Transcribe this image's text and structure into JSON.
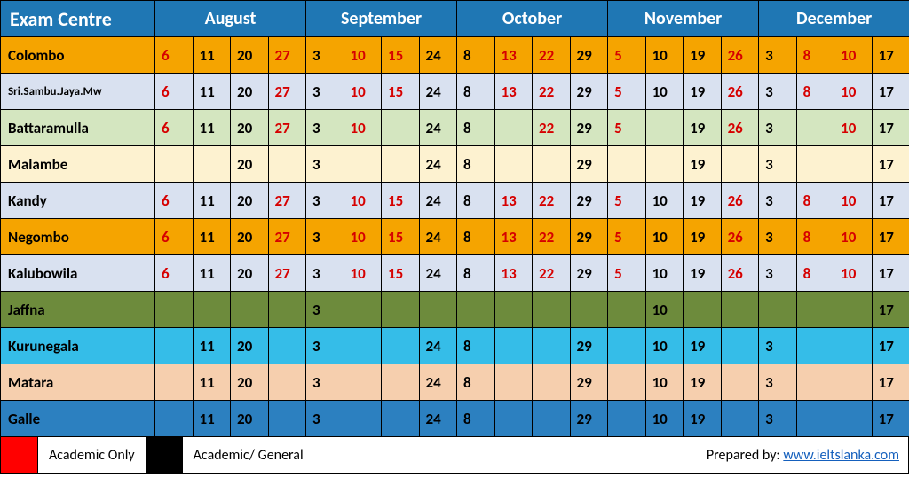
{
  "header": {
    "examCentreLabel": "Exam Centre",
    "months": [
      "August",
      "September",
      "October",
      "November",
      "December"
    ]
  },
  "colors": {
    "headerBg": "#1f77b4",
    "headerFg": "#ffffff",
    "academicOnly": "#d60000",
    "academicGeneral": "#000000",
    "legendRedBox": "#ff0000",
    "legendBlackBox": "#000000",
    "link": "#1560bd"
  },
  "rowColors": {
    "orange": "#f5a400",
    "paleblue": "#d9e1f0",
    "palegreen": "#d4e6c0",
    "cream": "#fdf2d0",
    "olive": "#6d8b3c",
    "skyblue": "#35bde8",
    "peach": "#f6cfae",
    "midblue": "#2c80c0"
  },
  "centres": [
    {
      "name": "Colombo",
      "bg": "orange",
      "dates": [
        [
          "6",
          "r"
        ],
        [
          "11",
          "b"
        ],
        [
          "20",
          "b"
        ],
        [
          "27",
          "r"
        ],
        [
          "3",
          "b"
        ],
        [
          "10",
          "r"
        ],
        [
          "15",
          "r"
        ],
        [
          "24",
          "b"
        ],
        [
          "8",
          "b"
        ],
        [
          "13",
          "r"
        ],
        [
          "22",
          "r"
        ],
        [
          "29",
          "b"
        ],
        [
          "5",
          "r"
        ],
        [
          "10",
          "b"
        ],
        [
          "19",
          "b"
        ],
        [
          "26",
          "r"
        ],
        [
          "3",
          "b"
        ],
        [
          "8",
          "r"
        ],
        [
          "10",
          "r"
        ],
        [
          "17",
          "b"
        ]
      ]
    },
    {
      "name": "Sri.Sambu.Jaya.Mw",
      "bg": "paleblue",
      "small": true,
      "dates": [
        [
          "6",
          "r"
        ],
        [
          "11",
          "b"
        ],
        [
          "20",
          "b"
        ],
        [
          "27",
          "r"
        ],
        [
          "3",
          "b"
        ],
        [
          "10",
          "r"
        ],
        [
          "15",
          "r"
        ],
        [
          "24",
          "b"
        ],
        [
          "8",
          "b"
        ],
        [
          "13",
          "r"
        ],
        [
          "22",
          "r"
        ],
        [
          "29",
          "b"
        ],
        [
          "5",
          "r"
        ],
        [
          "10",
          "b"
        ],
        [
          "19",
          "b"
        ],
        [
          "26",
          "r"
        ],
        [
          "3",
          "b"
        ],
        [
          "8",
          "r"
        ],
        [
          "10",
          "r"
        ],
        [
          "17",
          "b"
        ]
      ]
    },
    {
      "name": "Battaramulla",
      "bg": "palegreen",
      "dates": [
        [
          "6",
          "r"
        ],
        [
          "11",
          "b"
        ],
        [
          "20",
          "b"
        ],
        [
          "27",
          "r"
        ],
        [
          "3",
          "b"
        ],
        [
          "10",
          "r"
        ],
        [
          "",
          ""
        ],
        [
          "24",
          "b"
        ],
        [
          "8",
          "b"
        ],
        [
          "",
          ""
        ],
        [
          "22",
          "r"
        ],
        [
          "29",
          "b"
        ],
        [
          "5",
          "r"
        ],
        [
          "",
          ""
        ],
        [
          "19",
          "b"
        ],
        [
          "26",
          "r"
        ],
        [
          "3",
          "b"
        ],
        [
          "",
          ""
        ],
        [
          "10",
          "r"
        ],
        [
          "17",
          "b"
        ]
      ]
    },
    {
      "name": "Malambe",
      "bg": "cream",
      "dates": [
        [
          "",
          ""
        ],
        [
          "",
          ""
        ],
        [
          "20",
          "b"
        ],
        [
          "",
          ""
        ],
        [
          "3",
          "b"
        ],
        [
          "",
          ""
        ],
        [
          "",
          ""
        ],
        [
          "24",
          "b"
        ],
        [
          "8",
          "b"
        ],
        [
          "",
          ""
        ],
        [
          "",
          ""
        ],
        [
          "29",
          "b"
        ],
        [
          "",
          ""
        ],
        [
          "",
          ""
        ],
        [
          "19",
          "b"
        ],
        [
          "",
          ""
        ],
        [
          "3",
          "b"
        ],
        [
          "",
          ""
        ],
        [
          "",
          ""
        ],
        [
          "17",
          "b"
        ]
      ]
    },
    {
      "name": "Kandy",
      "bg": "paleblue",
      "dates": [
        [
          "6",
          "r"
        ],
        [
          "11",
          "b"
        ],
        [
          "20",
          "b"
        ],
        [
          "27",
          "r"
        ],
        [
          "3",
          "b"
        ],
        [
          "10",
          "r"
        ],
        [
          "15",
          "r"
        ],
        [
          "24",
          "b"
        ],
        [
          "8",
          "b"
        ],
        [
          "13",
          "r"
        ],
        [
          "22",
          "r"
        ],
        [
          "29",
          "b"
        ],
        [
          "5",
          "r"
        ],
        [
          "10",
          "b"
        ],
        [
          "19",
          "b"
        ],
        [
          "26",
          "r"
        ],
        [
          "3",
          "b"
        ],
        [
          "8",
          "r"
        ],
        [
          "10",
          "r"
        ],
        [
          "17",
          "b"
        ]
      ]
    },
    {
      "name": "Negombo",
      "bg": "orange",
      "dates": [
        [
          "6",
          "r"
        ],
        [
          "11",
          "b"
        ],
        [
          "20",
          "b"
        ],
        [
          "27",
          "r"
        ],
        [
          "3",
          "b"
        ],
        [
          "10",
          "r"
        ],
        [
          "15",
          "r"
        ],
        [
          "24",
          "b"
        ],
        [
          "8",
          "b"
        ],
        [
          "13",
          "r"
        ],
        [
          "22",
          "r"
        ],
        [
          "29",
          "b"
        ],
        [
          "5",
          "r"
        ],
        [
          "10",
          "b"
        ],
        [
          "19",
          "b"
        ],
        [
          "26",
          "r"
        ],
        [
          "3",
          "b"
        ],
        [
          "8",
          "r"
        ],
        [
          "10",
          "r"
        ],
        [
          "17",
          "b"
        ]
      ]
    },
    {
      "name": "Kalubowila",
      "bg": "paleblue",
      "dates": [
        [
          "6",
          "r"
        ],
        [
          "11",
          "b"
        ],
        [
          "20",
          "b"
        ],
        [
          "27",
          "r"
        ],
        [
          "3",
          "b"
        ],
        [
          "10",
          "r"
        ],
        [
          "15",
          "r"
        ],
        [
          "24",
          "b"
        ],
        [
          "8",
          "b"
        ],
        [
          "13",
          "r"
        ],
        [
          "22",
          "r"
        ],
        [
          "29",
          "b"
        ],
        [
          "5",
          "r"
        ],
        [
          "10",
          "b"
        ],
        [
          "19",
          "b"
        ],
        [
          "26",
          "r"
        ],
        [
          "3",
          "b"
        ],
        [
          "8",
          "r"
        ],
        [
          "10",
          "r"
        ],
        [
          "17",
          "b"
        ]
      ]
    },
    {
      "name": "Jaffna",
      "bg": "olive",
      "dates": [
        [
          "",
          ""
        ],
        [
          "",
          ""
        ],
        [
          "",
          ""
        ],
        [
          "",
          ""
        ],
        [
          "3",
          "b"
        ],
        [
          "",
          ""
        ],
        [
          "",
          ""
        ],
        [
          "",
          ""
        ],
        [
          "",
          ""
        ],
        [
          "",
          ""
        ],
        [
          "",
          ""
        ],
        [
          "",
          ""
        ],
        [
          "",
          ""
        ],
        [
          "10",
          "b"
        ],
        [
          "",
          ""
        ],
        [
          "",
          ""
        ],
        [
          "",
          ""
        ],
        [
          "",
          ""
        ],
        [
          "",
          ""
        ],
        [
          "17",
          "b"
        ]
      ]
    },
    {
      "name": "Kurunegala",
      "bg": "skyblue",
      "dates": [
        [
          "",
          ""
        ],
        [
          "11",
          "b"
        ],
        [
          "20",
          "b"
        ],
        [
          "",
          ""
        ],
        [
          "3",
          "b"
        ],
        [
          "",
          ""
        ],
        [
          "",
          ""
        ],
        [
          "24",
          "b"
        ],
        [
          "8",
          "b"
        ],
        [
          "",
          ""
        ],
        [
          "",
          ""
        ],
        [
          "29",
          "b"
        ],
        [
          "",
          ""
        ],
        [
          "10",
          "b"
        ],
        [
          "19",
          "b"
        ],
        [
          "",
          ""
        ],
        [
          "3",
          "b"
        ],
        [
          "",
          ""
        ],
        [
          "",
          ""
        ],
        [
          "17",
          "b"
        ]
      ]
    },
    {
      "name": "Matara",
      "bg": "peach",
      "dates": [
        [
          "",
          ""
        ],
        [
          "11",
          "b"
        ],
        [
          "20",
          "b"
        ],
        [
          "",
          ""
        ],
        [
          "3",
          "b"
        ],
        [
          "",
          ""
        ],
        [
          "",
          ""
        ],
        [
          "24",
          "b"
        ],
        [
          "8",
          "b"
        ],
        [
          "",
          ""
        ],
        [
          "",
          ""
        ],
        [
          "29",
          "b"
        ],
        [
          "",
          ""
        ],
        [
          "10",
          "b"
        ],
        [
          "19",
          "b"
        ],
        [
          "",
          ""
        ],
        [
          "3",
          "b"
        ],
        [
          "",
          ""
        ],
        [
          "",
          ""
        ],
        [
          "17",
          "b"
        ]
      ]
    },
    {
      "name": "Galle",
      "bg": "midblue",
      "dates": [
        [
          "",
          ""
        ],
        [
          "11",
          "b"
        ],
        [
          "20",
          "b"
        ],
        [
          "",
          ""
        ],
        [
          "3",
          "b"
        ],
        [
          "",
          ""
        ],
        [
          "",
          ""
        ],
        [
          "24",
          "b"
        ],
        [
          "8",
          "b"
        ],
        [
          "",
          ""
        ],
        [
          "",
          ""
        ],
        [
          "29",
          "b"
        ],
        [
          "",
          ""
        ],
        [
          "10",
          "b"
        ],
        [
          "19",
          "b"
        ],
        [
          "",
          ""
        ],
        [
          "3",
          "b"
        ],
        [
          "",
          ""
        ],
        [
          "",
          ""
        ],
        [
          "17",
          "b"
        ]
      ]
    }
  ],
  "legend": {
    "academicOnly": "Academic Only",
    "academicGeneral": "Academic/ General",
    "preparedBy": "Prepared by: ",
    "linkText": "www.ieltslanka.com"
  }
}
